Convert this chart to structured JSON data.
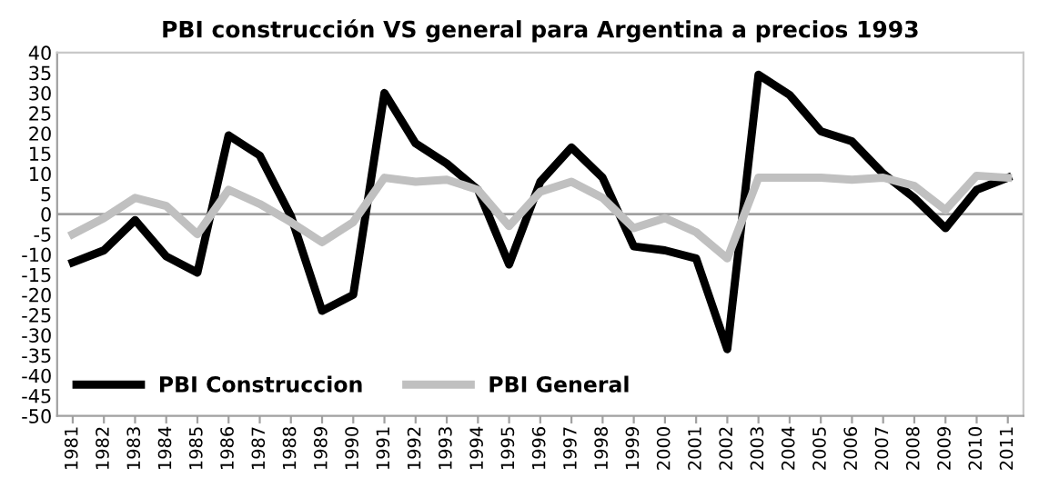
{
  "chart_data": {
    "type": "line",
    "title": "PBI construcción VS general para Argentina a precios 1993",
    "categories": [
      "1981",
      "1982",
      "1983",
      "1984",
      "1985",
      "1986",
      "1987",
      "1988",
      "1989",
      "1990",
      "1991",
      "1992",
      "1993",
      "1994",
      "1995",
      "1996",
      "1997",
      "1998",
      "1999",
      "2000",
      "2001",
      "2002",
      "2003",
      "2004",
      "2005",
      "2006",
      "2007",
      "2008",
      "2009",
      "2010",
      "2011"
    ],
    "series": [
      {
        "name": "PBI Construccion",
        "color": "#000000",
        "values": [
          -12,
          -9,
          -1.5,
          -10.5,
          -14.5,
          19.5,
          14.5,
          -0.5,
          -24,
          -20,
          30,
          17.5,
          12.5,
          6,
          -12.5,
          8,
          16.5,
          9,
          -8,
          -9,
          -11,
          -33.5,
          34.5,
          29.5,
          20.5,
          18,
          10,
          4,
          -3.5,
          6,
          9
        ]
      },
      {
        "name": "PBI General",
        "color": "#c0c0c0",
        "values": [
          -5,
          -1,
          4,
          2,
          -5,
          6,
          2.5,
          -2,
          -7,
          -2,
          9,
          8,
          8.5,
          6,
          -3,
          5.5,
          8,
          4,
          -3.5,
          -1,
          -4.5,
          -11,
          9,
          9,
          9,
          8.5,
          9,
          7,
          1,
          9.5,
          9
        ]
      }
    ],
    "ylim": [
      -50,
      40
    ],
    "yticks": [
      -50,
      -45,
      -40,
      -35,
      -30,
      -25,
      -20,
      -15,
      -10,
      -5,
      0,
      5,
      10,
      15,
      20,
      25,
      30,
      35,
      40
    ],
    "ref_lines": [
      {
        "axis": "y",
        "value": 0,
        "color": "#a0a0a0"
      }
    ],
    "grid": false,
    "legend": "bottom left",
    "marker": "none",
    "line_style": "solid"
  }
}
